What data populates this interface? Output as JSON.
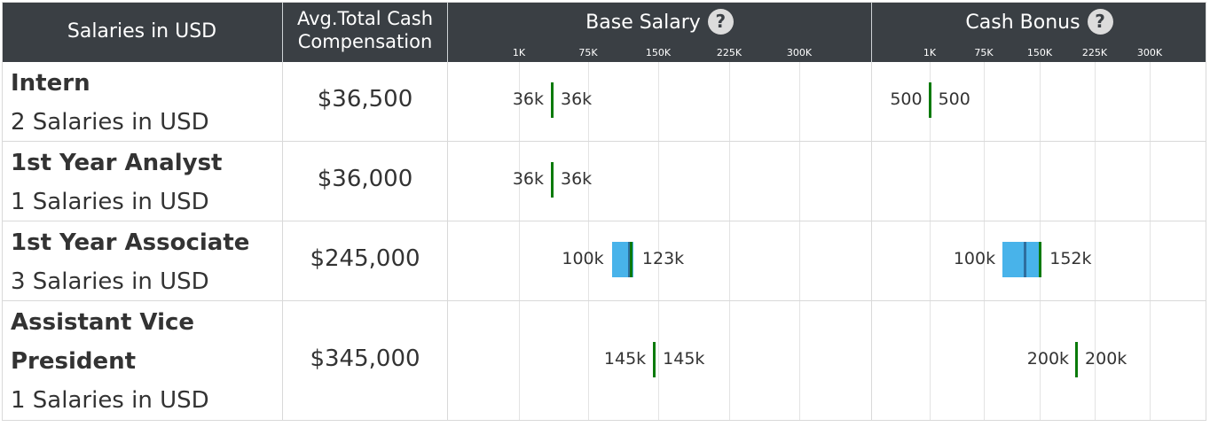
{
  "header": {
    "col_role": "Salaries in USD",
    "col_avg_line1": "Avg.Total Cash",
    "col_avg_line2": "Compensation",
    "col_base": "Base Salary",
    "col_bonus": "Cash Bonus",
    "help_glyph": "?"
  },
  "rows": [
    {
      "title_lines": [
        "Intern"
      ],
      "count": "2 Salaries in USD",
      "avg": "$36,500"
    },
    {
      "title_lines": [
        "1st Year Analyst"
      ],
      "count": "1 Salaries in USD",
      "avg": "$36,000"
    },
    {
      "title_lines": [
        "1st Year Associate"
      ],
      "count": "3 Salaries in USD",
      "avg": "$245,000"
    },
    {
      "title_lines": [
        "Assistant Vice",
        "President"
      ],
      "count": "1 Salaries in USD",
      "avg": "$345,000"
    }
  ],
  "chart_data": [
    {
      "type": "bar",
      "title": "Base Salary",
      "axis_ticks": [
        {
          "label": "1K",
          "value": 1000
        },
        {
          "label": "75K",
          "value": 75000
        },
        {
          "label": "150K",
          "value": 150000
        },
        {
          "label": "225K",
          "value": 225000
        },
        {
          "label": "300K",
          "value": 300000
        }
      ],
      "categories": [
        "Intern",
        "1st Year Analyst",
        "1st Year Associate",
        "Assistant Vice President"
      ],
      "series": [
        {
          "min": 36000,
          "max": 36000,
          "median": 36000,
          "min_label": "36k",
          "max_label": "36k"
        },
        {
          "min": 36000,
          "max": 36000,
          "median": 36000,
          "min_label": "36k",
          "max_label": "36k"
        },
        {
          "min": 100000,
          "max": 123000,
          "median": 120000,
          "q": 118000,
          "min_label": "100k",
          "max_label": "123k"
        },
        {
          "min": 145000,
          "max": 145000,
          "median": 145000,
          "min_label": "145k",
          "max_label": "145k"
        }
      ],
      "colors": {
        "range": "#48b3ea",
        "median": "#0a7a0a",
        "quartile": "#2e6e9e"
      }
    },
    {
      "type": "bar",
      "title": "Cash Bonus",
      "axis_ticks": [
        {
          "label": "1K",
          "value": 1000
        },
        {
          "label": "75K",
          "value": 75000
        },
        {
          "label": "150K",
          "value": 150000
        },
        {
          "label": "225K",
          "value": 225000
        },
        {
          "label": "300K",
          "value": 300000
        }
      ],
      "categories": [
        "Intern",
        "1st Year Analyst",
        "1st Year Associate",
        "Assistant Vice President"
      ],
      "series": [
        {
          "min": 500,
          "max": 500,
          "median": 500,
          "min_label": "500",
          "max_label": "500"
        },
        null,
        {
          "min": 100000,
          "max": 152000,
          "median": 150000,
          "q": 130000,
          "min_label": "100k",
          "max_label": "152k"
        },
        {
          "min": 200000,
          "max": 200000,
          "median": 200000,
          "min_label": "200k",
          "max_label": "200k"
        }
      ],
      "colors": {
        "range": "#48b3ea",
        "median": "#0a7a0a",
        "quartile": "#2e6e9e"
      }
    }
  ]
}
